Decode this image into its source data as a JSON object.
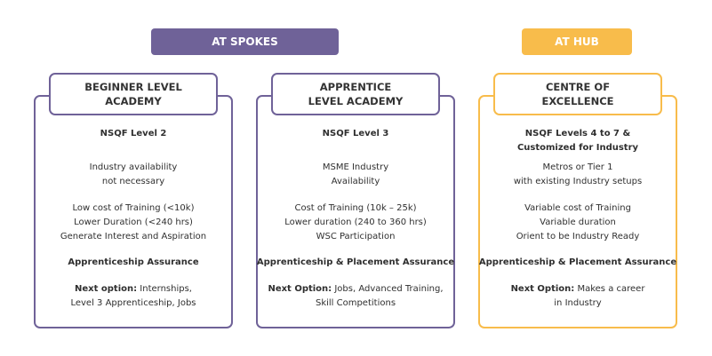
{
  "colors": {
    "spokes": "#6f6298",
    "hub": "#f8bc4b"
  },
  "banners": {
    "spokes": "AT SPOKES",
    "hub": "AT HUB"
  },
  "cards": [
    {
      "title": [
        "BEGINNER LEVEL",
        "ACADEMY"
      ],
      "level": [
        "NSQF Level 2"
      ],
      "industry": [
        "Industry availability",
        "not necessary"
      ],
      "details": [
        "Low cost of Training (<10k)",
        "Lower Duration (<240 hrs)",
        "Generate Interest and Aspiration"
      ],
      "assurance": "Apprenticeship Assurance",
      "next_label": "Next option:",
      "next": [
        " Internships,",
        "Level 3 Apprenticeship, Jobs"
      ]
    },
    {
      "title": [
        "APPRENTICE",
        "LEVEL ACADEMY"
      ],
      "level": [
        "NSQF Level 3"
      ],
      "industry": [
        "MSME Industry",
        "Availability"
      ],
      "details": [
        "Cost of Training (10k – 25k)",
        "Lower duration (240 to 360 hrs)",
        "WSC Participation"
      ],
      "assurance": "Apprenticeship & Placement Assurance",
      "next_label": "Next Option:",
      "next": [
        " Jobs, Advanced Training,",
        "Skill Competitions"
      ]
    },
    {
      "title": [
        "CENTRE OF",
        "EXCELLENCE"
      ],
      "level": [
        "NSQF Levels 4 to 7 &",
        "Customized for Industry"
      ],
      "industry": [
        "Metros or Tier 1",
        "with existing Industry setups"
      ],
      "details": [
        "Variable cost of Training",
        "Variable duration",
        "Orient to be Industry Ready"
      ],
      "assurance": "Apprenticeship & Placement Assurance",
      "next_label": "Next Option:",
      "next": [
        " Makes a career",
        "in Industry"
      ]
    }
  ]
}
